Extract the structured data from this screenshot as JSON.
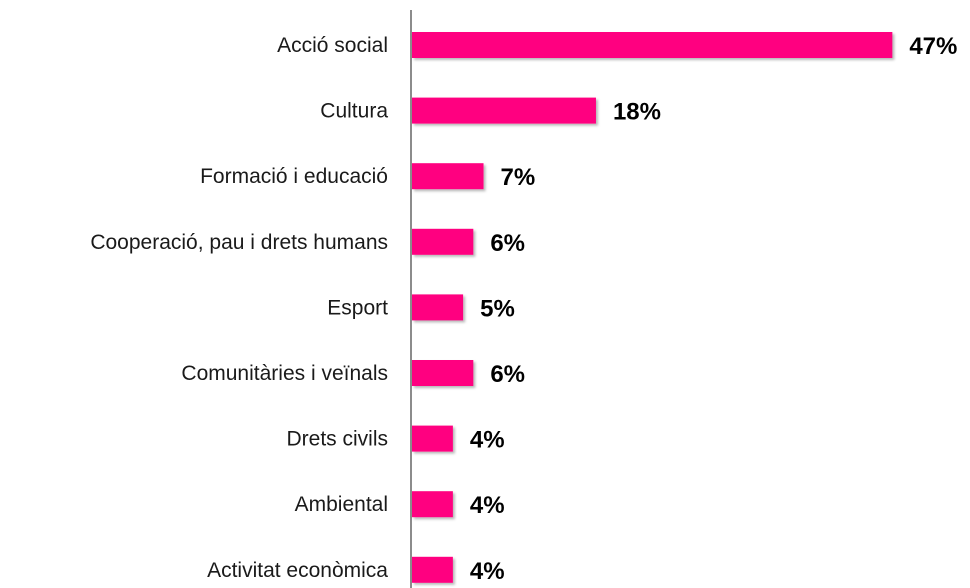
{
  "chart_data": {
    "type": "bar",
    "orientation": "horizontal",
    "categories": [
      "Acció social",
      "Cultura",
      "Formació i educació",
      "Cooperació, pau i drets humans",
      "Esport",
      "Comunitàries i veïnals",
      "Drets civils",
      "Ambiental",
      "Activitat econòmica"
    ],
    "values": [
      47,
      18,
      7,
      6,
      5,
      6,
      4,
      4,
      4
    ],
    "value_labels": [
      "47%",
      "18%",
      "7%",
      "6%",
      "5%",
      "6%",
      "4%",
      "4%",
      "4%"
    ],
    "unit": "%",
    "title": "",
    "xlabel": "",
    "ylabel": "",
    "grid": false,
    "legend": "none",
    "bar_color": "#ff0080"
  }
}
